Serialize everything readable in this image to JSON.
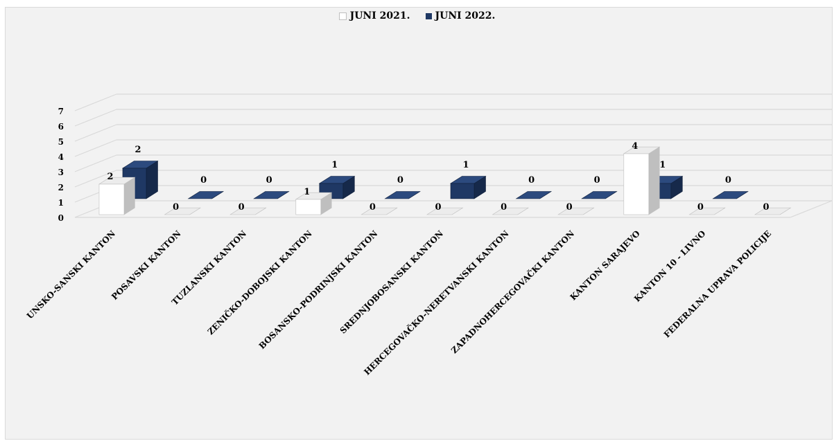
{
  "chart_data": {
    "type": "bar",
    "categories": [
      "UNSKO-SANSKI KANTON",
      "POSAVSKI KANTON",
      "TUZLANSKI KANTON",
      "ZENIČKO-DOBOJSKI KANTON",
      "BOSANSKO-PODRINJSKI KANTON",
      "SREDNJOBOSANSKI KANTON",
      "HERCEGOVAČKO-NERETVANSKI KANTON",
      "ZAPADNOHERCEGOVAČKI KANTON",
      "KANTON SARAJEVO",
      "KANTON 10 - LIVNO",
      "FEDERALNA UPRAVA POLICIJE"
    ],
    "series": [
      {
        "name": "JUNI 2021.",
        "values": [
          2,
          0,
          0,
          1,
          0,
          0,
          0,
          0,
          4,
          0,
          0
        ],
        "color": "#ffffff"
      },
      {
        "name": "JUNI 2022.",
        "values": [
          2,
          0,
          0,
          1,
          0,
          1,
          0,
          0,
          1,
          0,
          null
        ],
        "color": "#1f3864"
      }
    ],
    "yticks": [
      0,
      1,
      2,
      3,
      4,
      5,
      6,
      7
    ],
    "ylim": [
      0,
      7
    ],
    "grid": true,
    "legend_position": "top",
    "style": "3d-clustered-column",
    "title": "",
    "xlabel": "",
    "ylabel": ""
  }
}
